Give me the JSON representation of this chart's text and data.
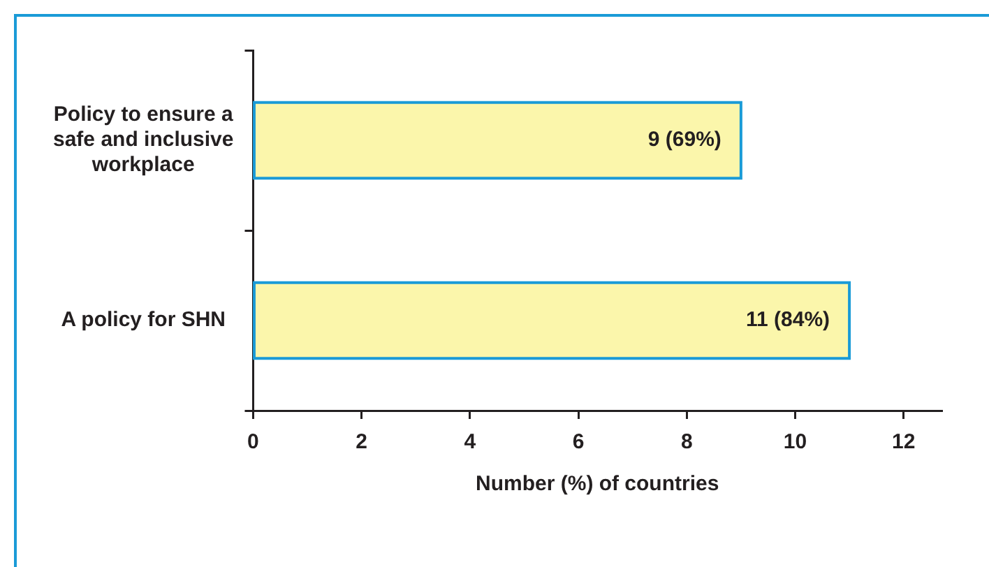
{
  "chart_data": {
    "type": "bar",
    "orientation": "horizontal",
    "xlabel": "Number (%) of countries",
    "categories": [
      "Policy to ensure a safe and inclusive workplace",
      "A policy for SHN"
    ],
    "values": [
      9,
      11
    ],
    "value_labels": [
      "9 (69%)",
      "11 (84%)"
    ],
    "color": "#fbf6ab",
    "xlim": [
      0,
      12.7
    ],
    "xticks": [
      0,
      2,
      4,
      6,
      8,
      10,
      12
    ],
    "grid": false,
    "legend": false
  }
}
